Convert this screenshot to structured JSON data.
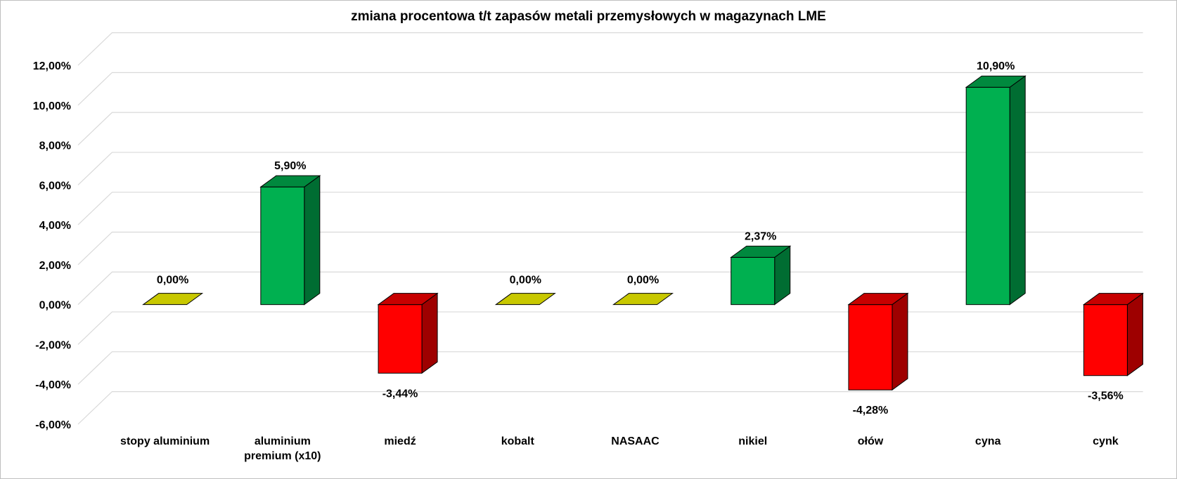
{
  "chart_data": {
    "type": "bar",
    "title": "zmiana procentowa t/t zapasów metali przemysłowych w magazynach LME",
    "xlabel": "",
    "ylabel": "",
    "ylim": [
      -6,
      12
    ],
    "y_ticks": [
      -6,
      -4,
      -2,
      0,
      2,
      4,
      6,
      8,
      10,
      12
    ],
    "y_tick_labels": [
      "-6,00%",
      "-4,00%",
      "-2,00%",
      "0,00%",
      "2,00%",
      "4,00%",
      "6,00%",
      "8,00%",
      "10,00%",
      "12,00%"
    ],
    "grid": true,
    "legend": "none",
    "categories": [
      [
        "stopy aluminium"
      ],
      [
        "aluminium",
        "premium (x10)"
      ],
      [
        "miedź"
      ],
      [
        "kobalt"
      ],
      [
        "NASAAC"
      ],
      [
        "nikiel"
      ],
      [
        "ołów"
      ],
      [
        "cyna"
      ],
      [
        "cynk"
      ]
    ],
    "values": [
      0.0,
      5.9,
      -3.44,
      0.0,
      0.0,
      2.37,
      -4.28,
      10.9,
      -3.56
    ],
    "value_labels": [
      "0,00%",
      "5,90%",
      "-3,44%",
      "0,00%",
      "0,00%",
      "2,37%",
      "-4,28%",
      "10,90%",
      "-3,56%"
    ],
    "colors": {
      "positive": "#00b050",
      "negative": "#ff0000",
      "zero": "#c8c800"
    }
  }
}
